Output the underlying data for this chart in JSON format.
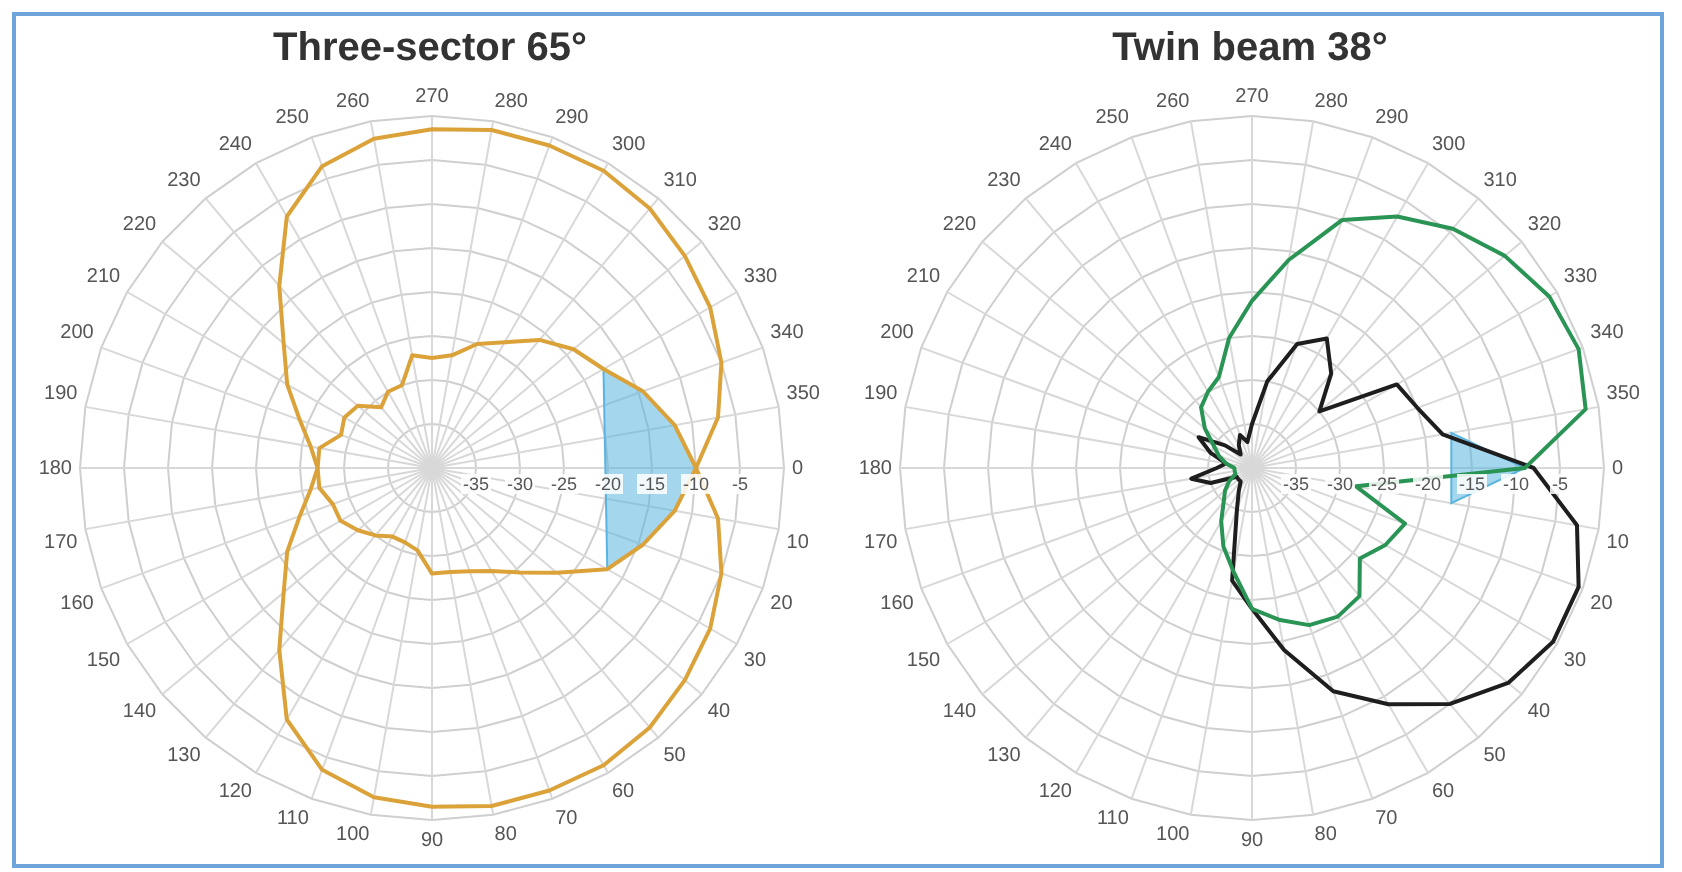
{
  "chart_data": [
    {
      "type": "radar",
      "title": "Three-sector 65°",
      "categories": [
        "270",
        "280",
        "290",
        "300",
        "310",
        "320",
        "330",
        "340",
        "350",
        "0",
        "10",
        "20",
        "30",
        "40",
        "50",
        "60",
        "70",
        "80",
        "90",
        "100",
        "110",
        "120",
        "130",
        "140",
        "150",
        "160",
        "170",
        "180",
        "190",
        "200",
        "210",
        "220",
        "230",
        "240",
        "250",
        "260"
      ],
      "ylim": [
        -40,
        0
      ],
      "yticks": [
        -35,
        -30,
        -25,
        -20,
        -15,
        -10,
        -5
      ],
      "grid": true,
      "legend": false,
      "series": [
        {
          "color": "#dca23a",
          "values": [
            -1.5,
            -1,
            -1,
            -1,
            -1.5,
            -2.5,
            -3.5,
            -5,
            -7,
            -10,
            -7,
            -5,
            -3.5,
            -2.5,
            -1.5,
            -1,
            -1,
            -1,
            -1.5,
            -2,
            -3.5,
            -7,
            -13,
            -18,
            -21,
            -24,
            -26,
            -27,
            -26,
            -24,
            -21,
            -18,
            -13,
            -7,
            -3.5,
            -2
          ]
        },
        {
          "color": "#dca23a",
          "values": [
            -27.5,
            -27,
            -25,
            -23.5,
            -21,
            -19,
            -17.5,
            -14.5,
            -12,
            -10,
            -12,
            -14.5,
            -17,
            -21.5,
            -24.5,
            -26.5,
            -27.5,
            -28,
            -28,
            -30.5,
            -31,
            -31,
            -30,
            -29,
            -28,
            -28,
            -27,
            -27,
            -27,
            -29,
            -28.5,
            -29,
            -31,
            -30,
            -30,
            -27
          ]
        },
        {
          "type": "area",
          "color": "#5ab4e0",
          "values": [
            null,
            null,
            null,
            null,
            null,
            null,
            -17.5,
            -14.5,
            -12,
            -10,
            -12,
            -14.5,
            -17,
            null,
            null,
            null,
            null,
            null,
            null,
            null,
            null,
            null,
            null,
            null,
            null,
            null,
            null,
            null,
            null,
            null,
            null,
            null,
            null,
            null,
            null,
            null
          ]
        }
      ]
    },
    {
      "type": "radar",
      "title": "Twin beam 38°",
      "categories": [
        "270",
        "280",
        "290",
        "300",
        "310",
        "320",
        "330",
        "340",
        "350",
        "0",
        "10",
        "20",
        "30",
        "40",
        "50",
        "60",
        "70",
        "80",
        "90",
        "100",
        "110",
        "120",
        "130",
        "140",
        "150",
        "160",
        "170",
        "180",
        "190",
        "200",
        "210",
        "220",
        "230",
        "240",
        "250",
        "260"
      ],
      "ylim": [
        -40,
        0
      ],
      "yticks": [
        -35,
        -30,
        -25,
        -20,
        -15,
        -10,
        -5
      ],
      "grid": true,
      "legend": false,
      "series": [
        {
          "color": "#2a9455",
          "values": [
            -21,
            -16,
            -10,
            -7,
            -4.5,
            -2.5,
            -1,
            -0.5,
            -1.5,
            -9,
            -28,
            -21.5,
            -22.5,
            -24,
            -21,
            -20.5,
            -21,
            -22.5,
            -24,
            -28,
            -30.5,
            -33,
            -35,
            -36,
            -37,
            -38,
            -38,
            -38,
            -37,
            -36,
            -35,
            -33,
            -31,
            -30,
            -29,
            -25
          ]
        },
        {
          "color": "#1e1e1e",
          "values": [
            -35,
            -30,
            -25,
            -23,
            -26,
            -30,
            -21,
            -20,
            -18,
            -8,
            -2.5,
            -0.5,
            -0.5,
            -2,
            -5,
            -9,
            -13,
            -19,
            -24,
            -27,
            -35,
            -37,
            -38,
            -38,
            -38,
            -35,
            -33,
            -36,
            -37,
            -35,
            -33,
            -36,
            -38,
            -37,
            -36,
            -37
          ]
        },
        {
          "type": "area",
          "color": "#5ab4e0",
          "values": [
            null,
            null,
            null,
            null,
            null,
            null,
            null,
            null,
            -17,
            -9,
            -17,
            null,
            null,
            null,
            null,
            null,
            null,
            null,
            null,
            null,
            null,
            null,
            null,
            null,
            null,
            null,
            null,
            null,
            null,
            null,
            null,
            null,
            null,
            null,
            null,
            null
          ]
        }
      ]
    }
  ]
}
